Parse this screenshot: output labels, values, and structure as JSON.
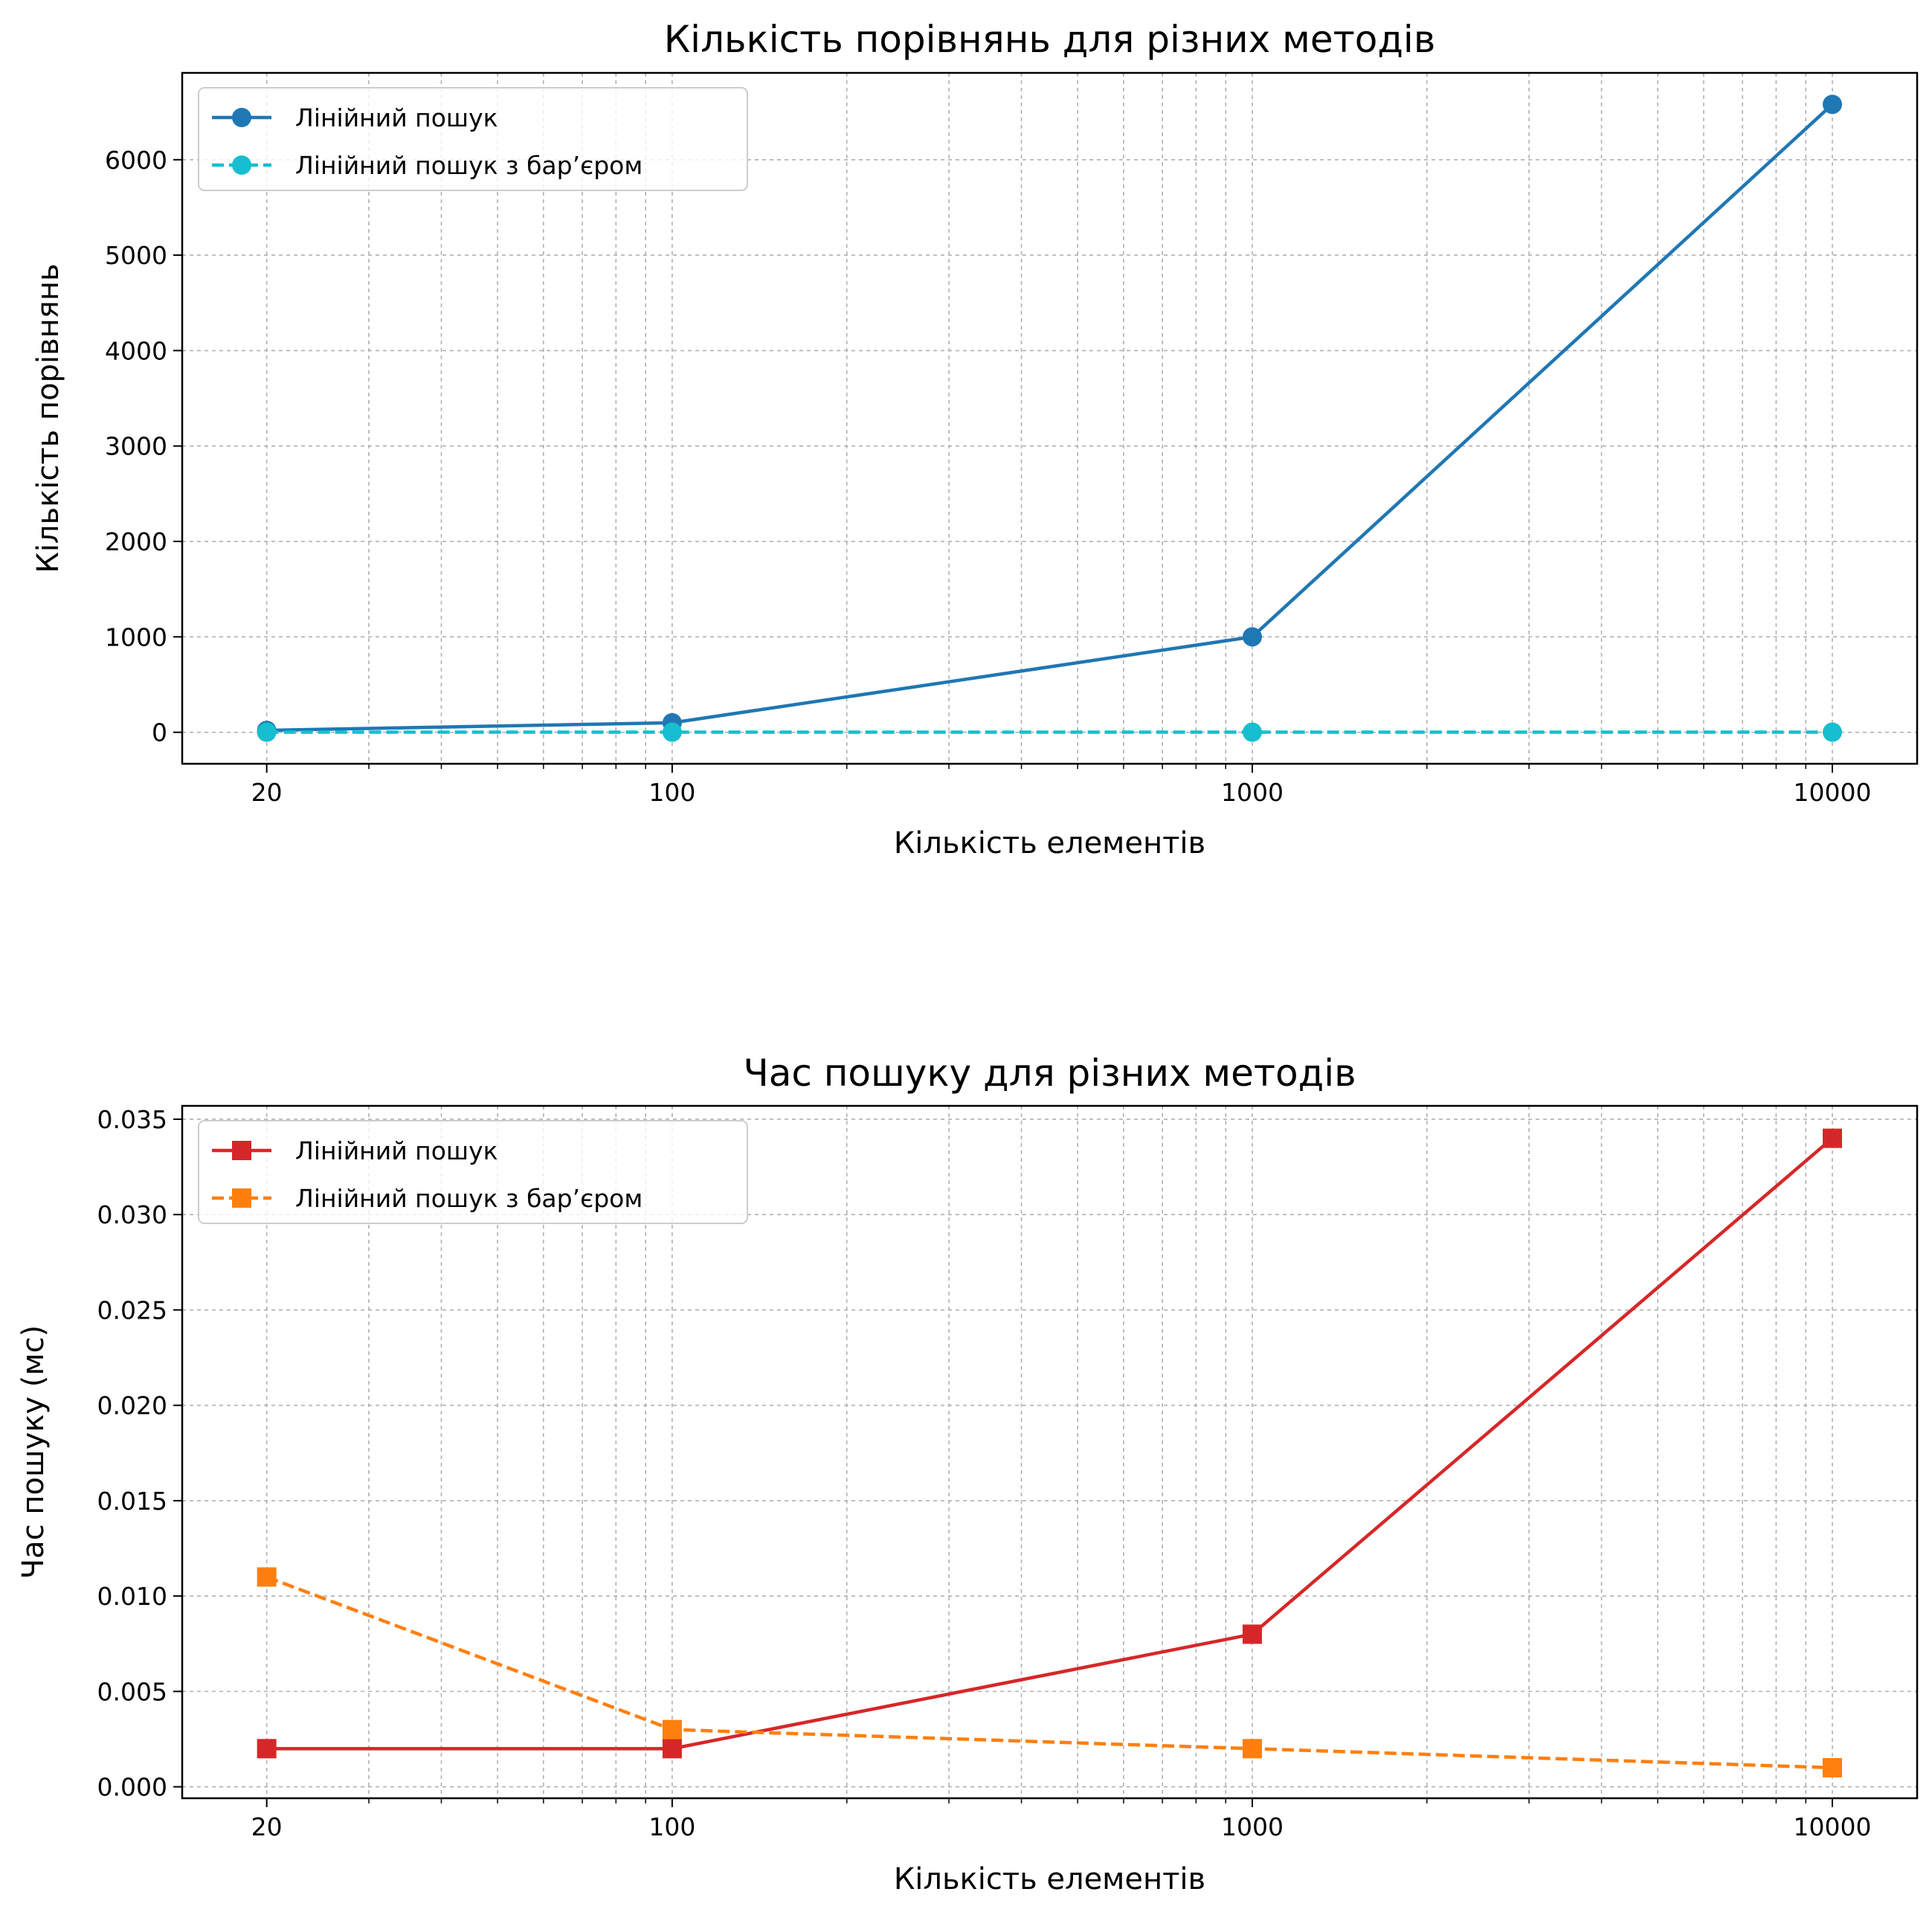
{
  "chart_data": [
    {
      "type": "line",
      "title": "Кількість порівнянь для різних методів",
      "xlabel": "Кількість елементів",
      "ylabel": "Кількість порівнянь",
      "x": [
        20,
        100,
        1000,
        10000
      ],
      "xscale": "log",
      "xticks": [
        20,
        100,
        1000,
        10000
      ],
      "xtick_labels": [
        "20",
        "100",
        "1000",
        "10000"
      ],
      "ylim": [
        -330,
        6910
      ],
      "yticks": [
        0,
        1000,
        2000,
        3000,
        4000,
        5000,
        6000
      ],
      "ytick_labels": [
        "0",
        "1000",
        "2000",
        "3000",
        "4000",
        "5000",
        "6000"
      ],
      "grid": true,
      "legend_position": "top-left",
      "series": [
        {
          "name": "Лінійний пошук",
          "values": [
            20,
            100,
            1000,
            6580
          ],
          "color": "#1f77b4",
          "linestyle": "solid",
          "marker": "circle"
        },
        {
          "name": "Лінійний пошук з бар’єром",
          "values": [
            1,
            1,
            1,
            1
          ],
          "color": "#17becf",
          "linestyle": "dashed",
          "marker": "circle"
        }
      ]
    },
    {
      "type": "line",
      "title": "Час пошуку для різних методів",
      "xlabel": "Кількість елементів",
      "ylabel": "Час пошуку (мс)",
      "x": [
        20,
        100,
        1000,
        10000
      ],
      "xscale": "log",
      "xticks": [
        20,
        100,
        1000,
        10000
      ],
      "xtick_labels": [
        "20",
        "100",
        "1000",
        "10000"
      ],
      "ylim": [
        -0.0006,
        0.0357
      ],
      "yticks": [
        0,
        0.005,
        0.01,
        0.015,
        0.02,
        0.025,
        0.03,
        0.035
      ],
      "ytick_labels": [
        "0.000",
        "0.005",
        "0.010",
        "0.015",
        "0.020",
        "0.025",
        "0.030",
        "0.035"
      ],
      "grid": true,
      "legend_position": "top-left",
      "series": [
        {
          "name": "Лінійний пошук",
          "values": [
            0.002,
            0.002,
            0.008,
            0.034
          ],
          "color": "#d62728",
          "linestyle": "solid",
          "marker": "square"
        },
        {
          "name": "Лінійний пошук з бар’єром",
          "values": [
            0.011,
            0.003,
            0.002,
            0.001
          ],
          "color": "#ff7f0e",
          "linestyle": "dashed",
          "marker": "square"
        }
      ]
    }
  ]
}
